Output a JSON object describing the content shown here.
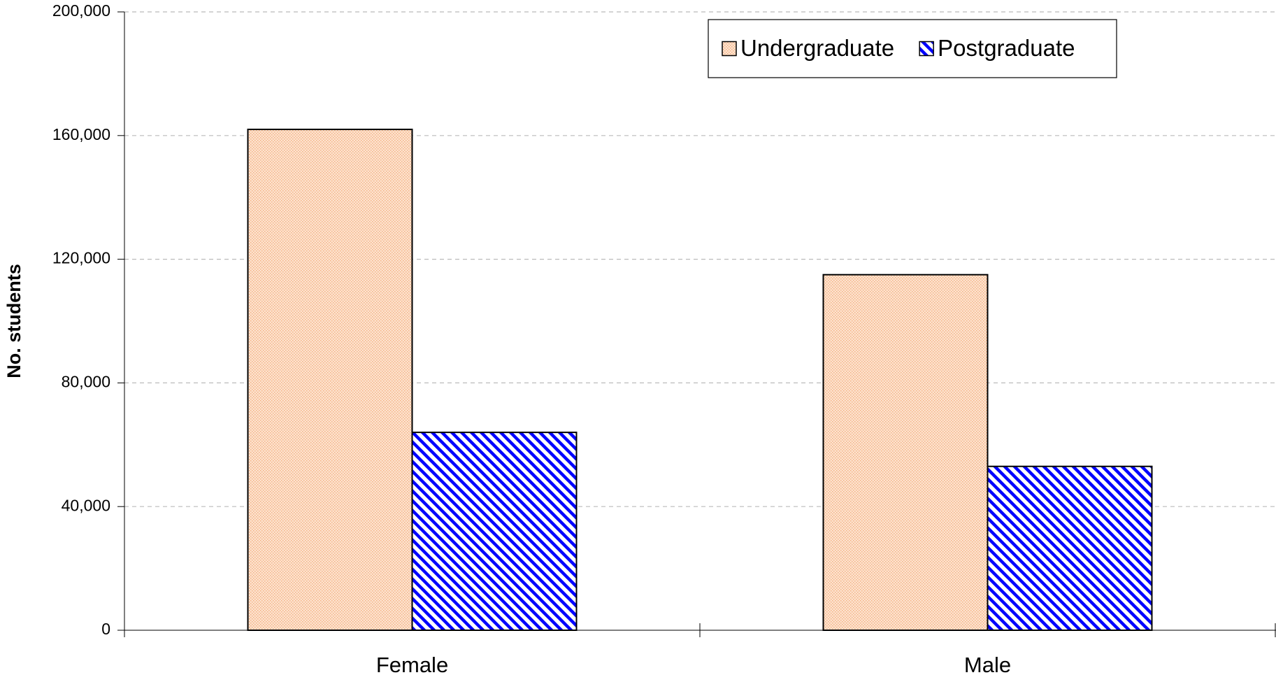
{
  "chart_data": {
    "type": "bar",
    "y_label": "No. students",
    "categories": [
      "Female",
      "Male"
    ],
    "series": [
      {
        "name": "Undergraduate",
        "color": "#f4b183",
        "pattern": "dots",
        "values": [
          162000,
          115000
        ]
      },
      {
        "name": "Postgraduate",
        "color": "#0000ff",
        "pattern": "hatch",
        "values": [
          64000,
          53000
        ]
      }
    ],
    "ylim": [
      0,
      200000
    ],
    "yticks": [
      {
        "value": 0,
        "label": "0"
      },
      {
        "value": 40000,
        "label": "40,000"
      },
      {
        "value": 80000,
        "label": "80,000"
      },
      {
        "value": 120000,
        "label": "120,000"
      },
      {
        "value": 160000,
        "label": "160,000"
      },
      {
        "value": 200000,
        "label": "200,000"
      }
    ],
    "grid": true,
    "legend": "top-right"
  }
}
